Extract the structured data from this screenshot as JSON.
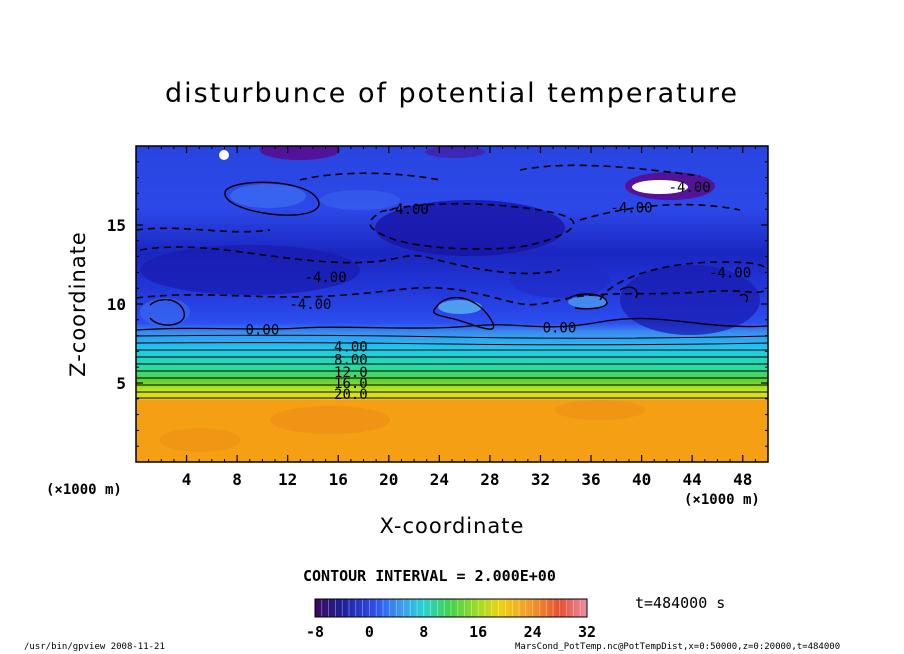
{
  "chart_data": {
    "type": "heatmap",
    "title": "disturbunce of potential temperature",
    "xlabel": "X-coordinate",
    "ylabel": "Z-coordinate",
    "x_unit_label": "(×1000 m)",
    "x_unit_label_right": "(×1000 m)",
    "xlim": [
      0,
      50
    ],
    "ylim": [
      0,
      20
    ],
    "x_ticks": [
      4,
      8,
      12,
      16,
      20,
      24,
      28,
      32,
      36,
      40,
      44,
      48
    ],
    "y_ticks": [
      5,
      10,
      15
    ],
    "contour_interval_text": "CONTOUR INTERVAL = 2.000E+00",
    "contour_interval": 2.0,
    "colorbar": {
      "range": [
        -8,
        32
      ],
      "ticks": [
        "-8",
        "0",
        "8",
        "16",
        "24",
        "32"
      ]
    },
    "contour_labels": [
      {
        "text": "-4.00",
        "x": 21.5,
        "z": 16.0
      },
      {
        "text": "-4.00",
        "x": 39.2,
        "z": 16.1
      },
      {
        "text": "-4.00",
        "x": 43.8,
        "z": 17.4
      },
      {
        "text": "-4.00",
        "x": 15.0,
        "z": 11.7
      },
      {
        "text": "-4.00",
        "x": 13.8,
        "z": 10.0
      },
      {
        "text": "-4.00",
        "x": 47.0,
        "z": 12.0
      },
      {
        "text": "0.00",
        "x": 10.0,
        "z": 8.4
      },
      {
        "text": "0.00",
        "x": 33.5,
        "z": 8.5
      },
      {
        "text": "4.00",
        "x": 17.0,
        "z": 7.3
      },
      {
        "text": "8.00",
        "x": 17.0,
        "z": 6.5
      },
      {
        "text": "12.0",
        "x": 17.0,
        "z": 5.7
      },
      {
        "text": "16.0",
        "x": 17.0,
        "z": 5.0
      },
      {
        "text": "20.0",
        "x": 17.0,
        "z": 4.3
      }
    ],
    "colors": {
      "deep_purple": "#5a0a8c",
      "dark_blue": "#1420b4",
      "blue": "#2c4ef0",
      "cyan": "#1ec8f0",
      "green": "#5ad23c",
      "yellow": "#e6dc14",
      "orange": "#f5a014",
      "dark_orange": "#f08214"
    }
  },
  "time_label": "t=484000 s",
  "footer_left": "/usr/bin/gpview   2008-11-21",
  "footer_right": "MarsCond_PotTemp.nc@PotTempDist,x=0:50000,z=0:20000,t=484000"
}
